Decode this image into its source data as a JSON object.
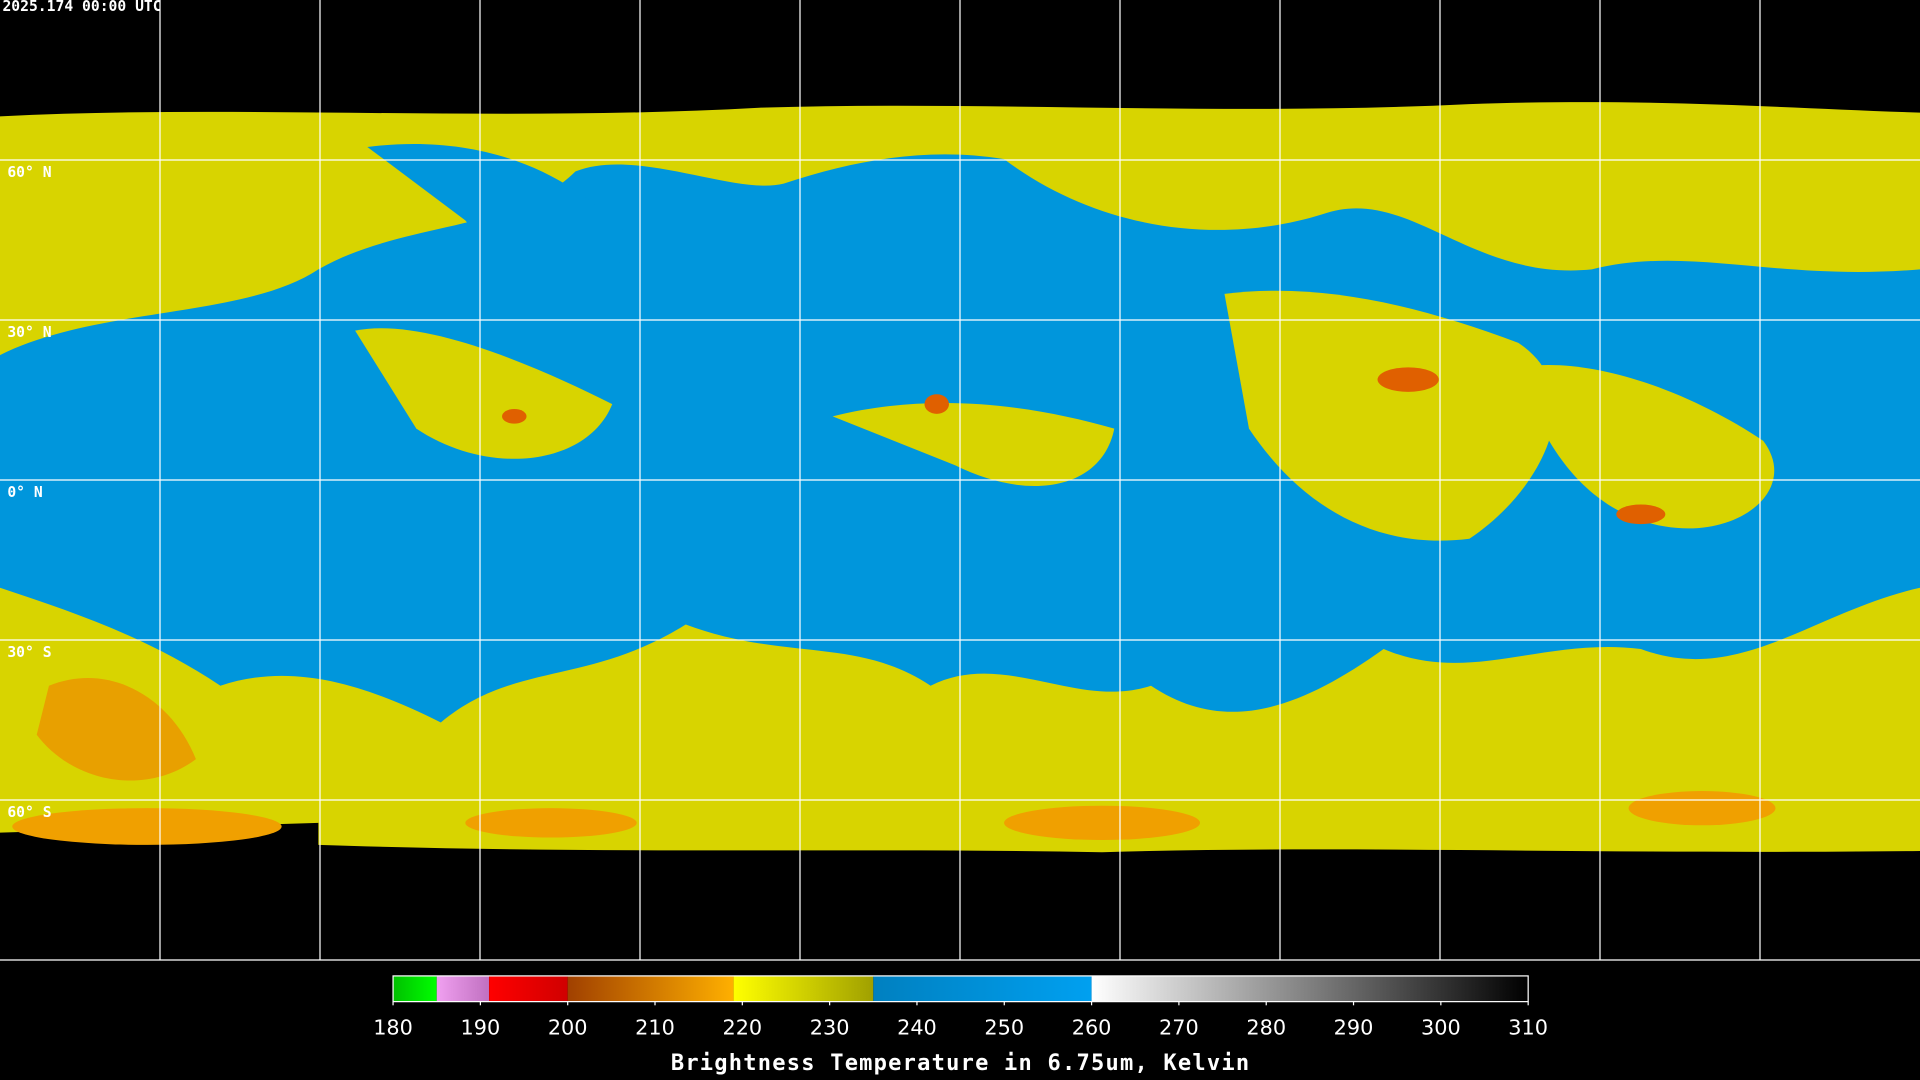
{
  "header": {
    "timestamp": "2025.174 00:00 UTC"
  },
  "map": {
    "latitude_labels": [
      "60° N",
      "30° N",
      "0° N",
      "30° S",
      "60° S"
    ]
  },
  "colorbar": {
    "title": "Brightness Temperature in 6.75um, Kelvin",
    "range": [
      180,
      310
    ],
    "ticks": [
      180,
      190,
      200,
      210,
      220,
      230,
      240,
      250,
      260,
      270,
      280,
      290,
      300,
      310
    ],
    "segments": [
      {
        "from": 180,
        "to": 185,
        "colors": [
          "#00c000",
          "#00ff00"
        ]
      },
      {
        "from": 185,
        "to": 191,
        "colors": [
          "#f0a0f0",
          "#c070c0"
        ]
      },
      {
        "from": 191,
        "to": 200,
        "colors": [
          "#ff0000",
          "#d00000"
        ]
      },
      {
        "from": 200,
        "to": 219,
        "colors": [
          "#a04000",
          "#ffb000"
        ]
      },
      {
        "from": 219,
        "to": 235,
        "colors": [
          "#ffff00",
          "#a0a000"
        ]
      },
      {
        "from": 235,
        "to": 260,
        "colors": [
          "#0080c0",
          "#00a0f0"
        ]
      },
      {
        "from": 260,
        "to": 310,
        "colors": [
          "#ffffff",
          "#000000"
        ]
      }
    ]
  }
}
